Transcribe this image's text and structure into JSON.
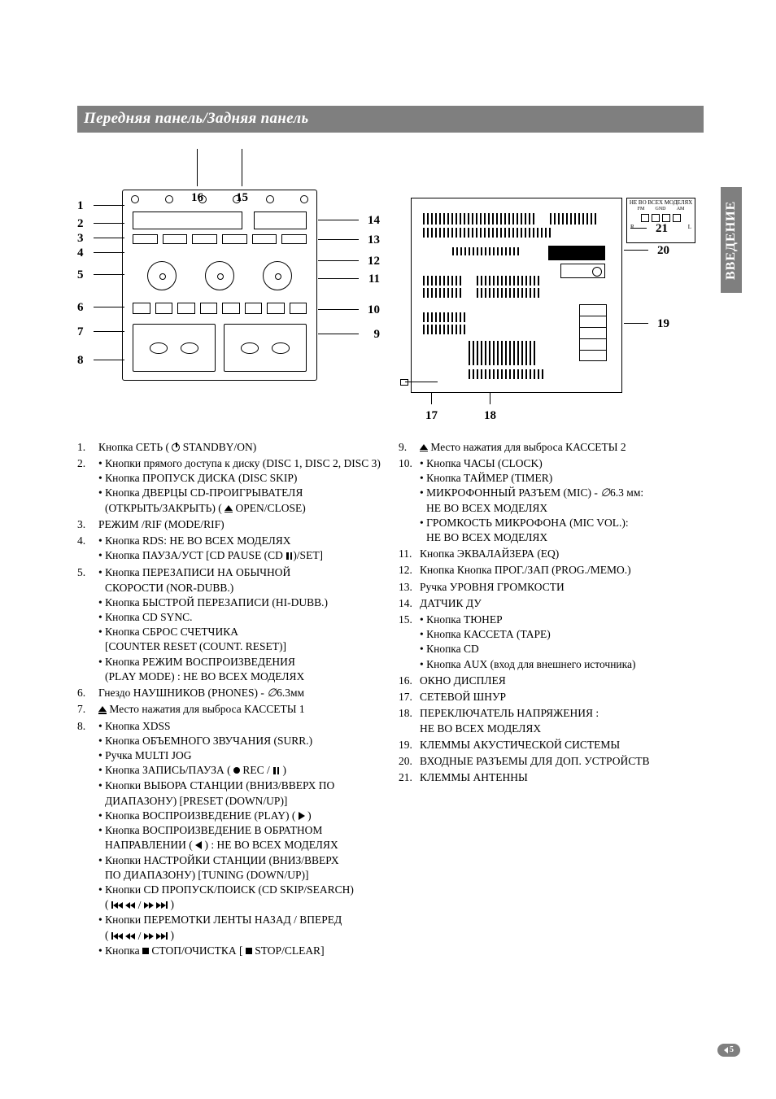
{
  "header": {
    "title": "Передняя панель/Задняя панель"
  },
  "side_tab": "ВВЕДЕНИЕ",
  "page_number": "5",
  "front_callouts": {
    "left": [
      "1",
      "2",
      "3",
      "4",
      "5",
      "6",
      "7",
      "8"
    ],
    "right": [
      "14",
      "13",
      "12",
      "11",
      "10",
      "9"
    ],
    "top": [
      "16",
      "15"
    ]
  },
  "rear_callouts": {
    "right": [
      "21",
      "20",
      "19"
    ],
    "bottom": [
      "17",
      "18"
    ]
  },
  "rear_antenna": {
    "title": "НЕ ВО ВСЕХ МОДЕЛЯХ",
    "fm": "FM",
    "gnd": "GND",
    "am": "AM",
    "r": "R",
    "l": "L"
  },
  "col_left": [
    {
      "no": "1.",
      "lines": [
        "Кнопка СЕТЬ ( {power} STANDBY/ON)"
      ]
    },
    {
      "no": "2.",
      "lines": [
        "• Кнопки прямого доступа к диску (DISC 1, DISC 2, DISC 3)",
        "• Кнопка ПРОПУСК ДИСКА (DISC SKIP)",
        "• Кнопка ДВЕРЦЫ CD-ПРОИГРЫВАТЕЛЯ",
        "  (ОТКРЫТЬ/ЗАКРЫТЬ) ( {eject} OPEN/CLOSE)"
      ]
    },
    {
      "no": "3.",
      "lines": [
        "РЕЖИМ /RIF (MODE/RIF)"
      ]
    },
    {
      "no": "4.",
      "lines": [
        "• Кнопка RDS: НЕ ВО ВСЕХ МОДЕЛЯХ",
        "• Кнопка  ПАУЗА/УСТ [CD PAUSE (CD {pause})/SET]"
      ]
    },
    {
      "no": "5.",
      "lines": [
        "• Кнопка ПЕРЕЗАПИСИ НА ОБЫЧНОЙ",
        "  СКОРОСТИ (NOR-DUBB.)",
        "• Кнопка БЫСТРОЙ ПЕРЕЗАПИСИ (HI-DUBB.)",
        "• Кнопка CD SYNC.",
        "• Кнопка СБРОС СЧЕТЧИКА",
        "  [COUNTER RESET (COUNT. RESET)]",
        "• Кнопка РЕЖИМ ВОСПРОИЗВЕДЕНИЯ",
        "  (PLAY MODE) : НЕ ВО ВСЕХ МОДЕЛЯХ"
      ]
    },
    {
      "no": "6.",
      "lines": [
        "Гнездо НАУШНИКОВ (PHONES) - {phi}6.3мм"
      ]
    },
    {
      "no": "7.",
      "lines": [
        "{eject} Место нажатия для выброса КАССЕТЫ 1"
      ]
    },
    {
      "no": "8.",
      "lines": [
        "• Кнопка XDSS",
        "• Кнопка ОБЪЕМНОГО ЗВУЧАНИЯ (SURR.)",
        "• Ручка MULTI JOG",
        "• Кнопка ЗАПИСЬ/ПАУЗА ( {rec} REC / {pause} )",
        "• Кнопки ВЫБОРА СТАНЦИИ (ВНИЗ/ВВЕРХ ПО",
        "  ДИАПАЗОНУ) [PRESET (DOWN/UP)]",
        "• Кнопка ВОСПРОИЗВЕДЕНИЕ (PLAY) ( {play} )",
        "• Кнопка ВОСПРОИЗВЕДЕНИЕ В ОБРАТНОМ",
        "  НАПРАВЛЕНИИ ( {playl} ) : НЕ ВО ВСЕХ МОДЕЛЯХ",
        "• Кнопки НАСТРОЙКИ СТАНЦИИ (ВНИЗ/ВВЕРХ",
        "  ПО ДИАПАЗОНУ) [TUNING (DOWN/UP)]",
        "• Кнопки CD ПРОПУСК/ПОИСК (CD SKIP/SEARCH)",
        "  ( {skipfull} )",
        "• Кнопки ПЕРЕМОТКИ ЛЕНТЫ НАЗАД / ВПЕРЕД",
        "  ( {skipfull} )",
        "• Кнопка {stop} СТОП/ОЧИСТКА [ {stop} STOP/CLEAR]"
      ]
    }
  ],
  "col_right": [
    {
      "no": "9.",
      "lines": [
        "{eject} Место нажатия для выброса КАССЕТЫ 2"
      ]
    },
    {
      "no": "10.",
      "lines": [
        "• Кнопка ЧАСЫ (CLOCK)",
        "• Кнопка ТАЙМЕР (TIMER)",
        "• МИКРОФОННЫЙ  РАЗЪЕМ (MIC) -  {phi}6.3 мм:",
        "  НЕ ВО ВСЕХ МОДЕЛЯХ",
        "• ГРОМКОСТЬ МИКРОФОНА (MIC VOL.):",
        "  НЕ ВО ВСЕХ МОДЕЛЯХ"
      ]
    },
    {
      "no": "11.",
      "lines": [
        "Кнопка ЭКВАЛАЙЗЕРА (EQ)"
      ]
    },
    {
      "no": "12.",
      "lines": [
        "Кнопка Кнопка ПРОГ./ЗАП (PROG./MEMO.)"
      ]
    },
    {
      "no": "13.",
      "lines": [
        "Ручка УРОВНЯ ГРОМКОСТИ"
      ]
    },
    {
      "no": "14.",
      "lines": [
        "ДАТЧИК ДУ"
      ]
    },
    {
      "no": "15.",
      "lines": [
        "• Кнопка ТЮНЕР",
        "• Кнопка КАССЕТА (TAPE)",
        "• Кнопка CD",
        "• Кнопка AUX (вход для внешнего источника)"
      ]
    },
    {
      "no": "16.",
      "lines": [
        "ОКНО ДИСПЛЕЯ"
      ]
    },
    {
      "no": "17.",
      "lines": [
        "СЕТЕВОЙ ШНУР"
      ]
    },
    {
      "no": "18.",
      "lines": [
        "ПЕРЕКЛЮЧАТЕЛЬ НАПРЯЖЕНИЯ :",
        "НЕ ВО ВСЕХ МОДЕЛЯХ"
      ]
    },
    {
      "no": "19.",
      "lines": [
        "КЛЕММЫ АКУСТИЧЕСКОЙ СИСТЕМЫ"
      ]
    },
    {
      "no": "20.",
      "lines": [
        "ВХОДНЫЕ РАЗЪЕМЫ ДЛЯ ДОП. УСТРОЙСТВ"
      ]
    },
    {
      "no": "21.",
      "lines": [
        "КЛЕММЫ АНТЕННЫ"
      ]
    }
  ]
}
